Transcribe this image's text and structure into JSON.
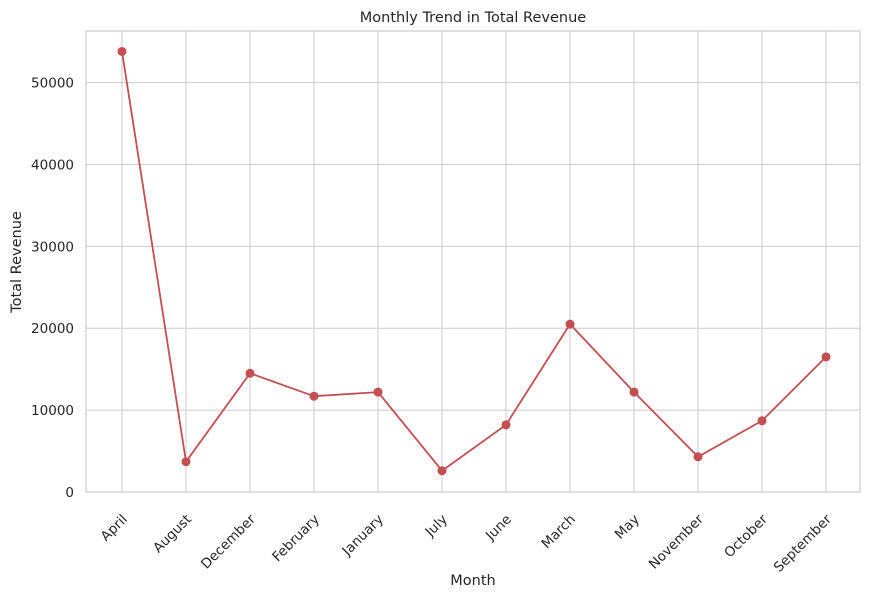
{
  "chart_data": {
    "type": "line",
    "title": "Monthly Trend in Total Revenue",
    "xlabel": "Month",
    "ylabel": "Total Revenue",
    "categories": [
      "April",
      "August",
      "December",
      "February",
      "January",
      "July",
      "June",
      "March",
      "May",
      "November",
      "October",
      "September"
    ],
    "series": [
      {
        "values": [
          53800,
          3700,
          14500,
          11700,
          12200,
          2600,
          8200,
          20500,
          12200,
          4300,
          8700,
          16500
        ],
        "color": "#c44e52",
        "marker": "circle"
      }
    ],
    "ylim": [
      0,
      56300
    ],
    "yticks": [
      0,
      10000,
      20000,
      30000,
      40000,
      50000
    ],
    "grid": true,
    "legend": "none"
  }
}
